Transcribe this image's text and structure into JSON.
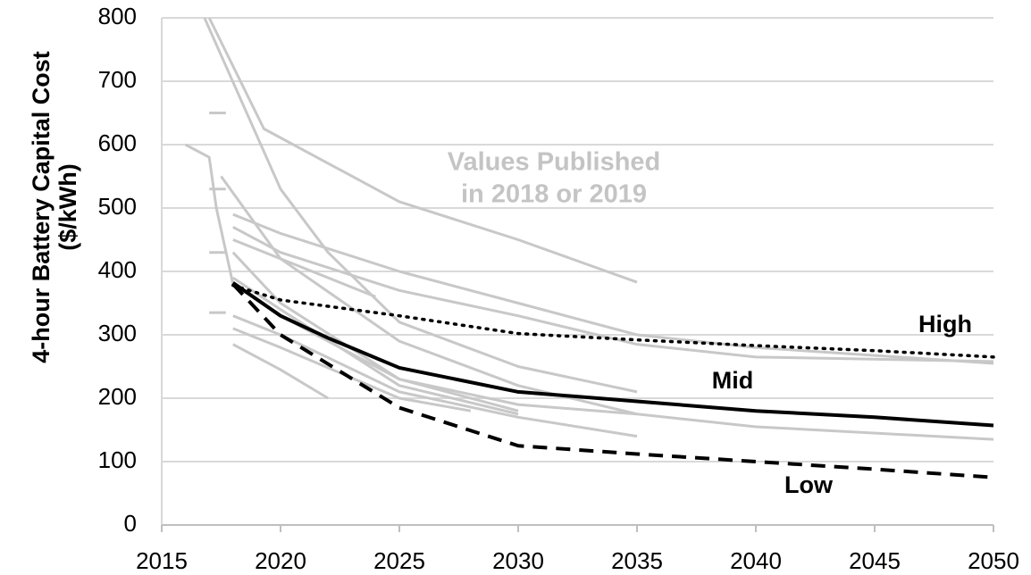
{
  "chart_data": {
    "type": "line",
    "y_label": [
      "4-hour Battery Capital Cost",
      "($/kWh)"
    ],
    "annotation": [
      "Values Published",
      "in 2018 or 2019"
    ],
    "xlim": [
      2015,
      2050
    ],
    "xticks": [
      2015,
      2020,
      2025,
      2030,
      2035,
      2040,
      2045,
      2050
    ],
    "ylim": [
      0,
      800
    ],
    "yticks": [
      0,
      100,
      200,
      300,
      400,
      500,
      600,
      700,
      800
    ],
    "grid": true,
    "series": [
      {
        "color": "#c8c8c8",
        "style": "solid",
        "x": [
          2017,
          2019.3,
          2025,
          2030,
          2035
        ],
        "values": [
          800,
          625,
          510,
          450,
          383
        ]
      },
      {
        "color": "#c8c8c8",
        "style": "solid",
        "x": [
          2016.8,
          2020,
          2022,
          2025,
          2030,
          2035
        ],
        "values": [
          800,
          530,
          430,
          320,
          250,
          210
        ]
      },
      {
        "color": "#c8c8c8",
        "style": "solid",
        "x": [
          2016,
          2017,
          2017.3,
          2018,
          2020,
          2025,
          2030
        ],
        "values": [
          600,
          580,
          500,
          380,
          330,
          230,
          180
        ]
      },
      {
        "color": "#c8c8c8",
        "style": "solid",
        "x": [
          2018,
          2020,
          2025,
          2030,
          2035,
          2040,
          2050
        ],
        "values": [
          490,
          460,
          400,
          350,
          300,
          280,
          255
        ]
      },
      {
        "color": "#c8c8c8",
        "style": "solid",
        "x": [
          2018,
          2020,
          2025,
          2030,
          2035,
          2040,
          2050
        ],
        "values": [
          470,
          430,
          370,
          330,
          285,
          265,
          258
        ]
      },
      {
        "color": "#c8c8c8",
        "style": "solid",
        "x": [
          2018,
          2024
        ],
        "values": [
          450,
          360
        ]
      },
      {
        "color": "#c8c8c8",
        "style": "solid",
        "x": [
          2017.5,
          2020,
          2025,
          2030,
          2035
        ],
        "values": [
          550,
          420,
          290,
          220,
          175
        ]
      },
      {
        "color": "#c8c8c8",
        "style": "solid",
        "x": [
          2018,
          2020,
          2025,
          2030,
          2035,
          2040,
          2050
        ],
        "values": [
          430,
          350,
          230,
          190,
          175,
          155,
          135
        ]
      },
      {
        "color": "#c8c8c8",
        "style": "solid",
        "x": [
          2018,
          2020,
          2025,
          2030
        ],
        "values": [
          390,
          340,
          220,
          175
        ]
      },
      {
        "color": "#c8c8c8",
        "style": "solid",
        "x": [
          2018,
          2020,
          2025,
          2030,
          2035
        ],
        "values": [
          330,
          300,
          210,
          170,
          140
        ]
      },
      {
        "color": "#c8c8c8",
        "style": "solid",
        "x": [
          2018,
          2020,
          2022
        ],
        "values": [
          285,
          245,
          200
        ]
      },
      {
        "color": "#c8c8c8",
        "style": "solid",
        "x": [
          2018,
          2020,
          2025,
          2028
        ],
        "values": [
          310,
          280,
          200,
          180
        ]
      },
      {
        "color": "#c8c8c8",
        "style": "solid",
        "x": [
          2017,
          2017.7
        ],
        "values": [
          650,
          650
        ]
      },
      {
        "color": "#c8c8c8",
        "style": "solid",
        "x": [
          2017,
          2017.7
        ],
        "values": [
          530,
          530
        ]
      },
      {
        "color": "#c8c8c8",
        "style": "solid",
        "x": [
          2017,
          2017.7
        ],
        "values": [
          430,
          430
        ]
      },
      {
        "color": "#c8c8c8",
        "style": "solid",
        "x": [
          2017,
          2017.7
        ],
        "values": [
          335,
          335
        ]
      },
      {
        "name": "High",
        "color": "#000000",
        "style": "dotted",
        "x": [
          2018,
          2020,
          2025,
          2030,
          2035,
          2040,
          2045,
          2050
        ],
        "values": [
          378,
          355,
          330,
          302,
          292,
          283,
          275,
          265
        ]
      },
      {
        "name": "Mid",
        "color": "#000000",
        "style": "solid",
        "x": [
          2018,
          2020,
          2022,
          2025,
          2030,
          2035,
          2040,
          2045,
          2050
        ],
        "values": [
          382,
          330,
          295,
          248,
          210,
          195,
          180,
          170,
          157
        ]
      },
      {
        "name": "Low",
        "color": "#000000",
        "style": "dashed",
        "x": [
          2018,
          2020,
          2025,
          2030,
          2035,
          2040,
          2045,
          2050
        ],
        "values": [
          380,
          300,
          185,
          125,
          112,
          100,
          88,
          75
        ]
      }
    ]
  }
}
